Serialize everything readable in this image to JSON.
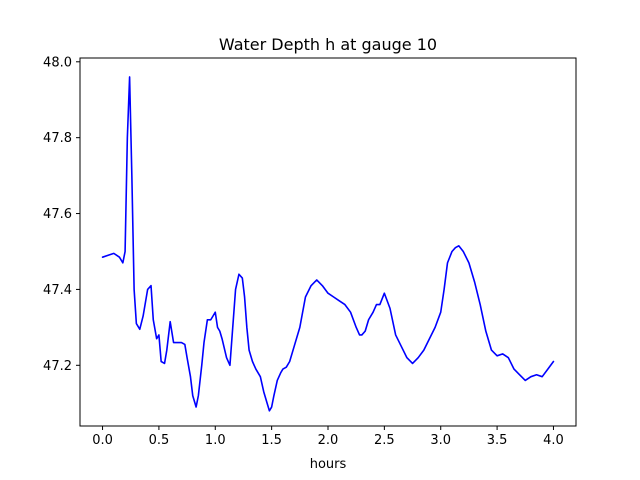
{
  "chart_data": {
    "type": "line",
    "title": "Water Depth h at gauge 10",
    "xlabel": "hours",
    "ylabel": "",
    "xlim": [
      -0.2,
      4.2
    ],
    "ylim": [
      47.04,
      48.01
    ],
    "xticks": [
      0.0,
      0.5,
      1.0,
      1.5,
      2.0,
      2.5,
      3.0,
      3.5,
      4.0
    ],
    "xtick_labels": [
      "0.0",
      "0.5",
      "1.0",
      "1.5",
      "2.0",
      "2.5",
      "3.0",
      "3.5",
      "4.0"
    ],
    "yticks": [
      47.2,
      47.4,
      47.6,
      47.8,
      48.0
    ],
    "ytick_labels": [
      "47.2",
      "47.4",
      "47.6",
      "47.8",
      "48.0"
    ],
    "grid": false,
    "series": [
      {
        "name": "",
        "color": "#0000ff",
        "x": [
          0.0,
          0.05,
          0.1,
          0.15,
          0.18,
          0.2,
          0.22,
          0.24,
          0.26,
          0.28,
          0.3,
          0.33,
          0.36,
          0.4,
          0.43,
          0.45,
          0.48,
          0.5,
          0.52,
          0.55,
          0.57,
          0.6,
          0.63,
          0.66,
          0.7,
          0.73,
          0.75,
          0.78,
          0.8,
          0.83,
          0.85,
          0.88,
          0.9,
          0.93,
          0.96,
          0.98,
          1.0,
          1.02,
          1.04,
          1.06,
          1.1,
          1.13,
          1.15,
          1.18,
          1.21,
          1.24,
          1.26,
          1.28,
          1.3,
          1.33,
          1.36,
          1.4,
          1.43,
          1.46,
          1.48,
          1.5,
          1.52,
          1.55,
          1.58,
          1.6,
          1.63,
          1.66,
          1.7,
          1.75,
          1.8,
          1.85,
          1.9,
          1.95,
          2.0,
          2.05,
          2.1,
          2.15,
          2.2,
          2.25,
          2.28,
          2.3,
          2.33,
          2.36,
          2.4,
          2.43,
          2.46,
          2.5,
          2.55,
          2.6,
          2.65,
          2.7,
          2.75,
          2.8,
          2.85,
          2.9,
          2.95,
          3.0,
          3.03,
          3.06,
          3.1,
          3.13,
          3.16,
          3.2,
          3.25,
          3.3,
          3.35,
          3.4,
          3.45,
          3.5,
          3.55,
          3.6,
          3.65,
          3.7,
          3.75,
          3.8,
          3.85,
          3.9,
          3.95,
          4.0
        ],
        "y": [
          47.485,
          47.49,
          47.495,
          47.485,
          47.47,
          47.5,
          47.8,
          47.96,
          47.7,
          47.4,
          47.31,
          47.295,
          47.33,
          47.4,
          47.41,
          47.32,
          47.27,
          47.28,
          47.21,
          47.205,
          47.24,
          47.315,
          47.26,
          47.26,
          47.26,
          47.255,
          47.22,
          47.17,
          47.12,
          47.09,
          47.12,
          47.2,
          47.26,
          47.32,
          47.32,
          47.33,
          47.34,
          47.3,
          47.29,
          47.27,
          47.22,
          47.2,
          47.28,
          47.4,
          47.44,
          47.43,
          47.38,
          47.3,
          47.24,
          47.21,
          47.19,
          47.17,
          47.13,
          47.1,
          47.08,
          47.09,
          47.12,
          47.16,
          47.18,
          47.19,
          47.195,
          47.21,
          47.25,
          47.3,
          47.38,
          47.41,
          47.425,
          47.41,
          47.39,
          47.38,
          47.37,
          47.36,
          47.34,
          47.3,
          47.28,
          47.28,
          47.29,
          47.32,
          47.34,
          47.36,
          47.36,
          47.39,
          47.35,
          47.28,
          47.25,
          47.22,
          47.205,
          47.22,
          47.24,
          47.27,
          47.3,
          47.34,
          47.4,
          47.47,
          47.5,
          47.51,
          47.515,
          47.5,
          47.47,
          47.42,
          47.36,
          47.29,
          47.24,
          47.225,
          47.23,
          47.22,
          47.19,
          47.175,
          47.16,
          47.17,
          47.175,
          47.17,
          47.19,
          47.21
        ]
      }
    ]
  }
}
